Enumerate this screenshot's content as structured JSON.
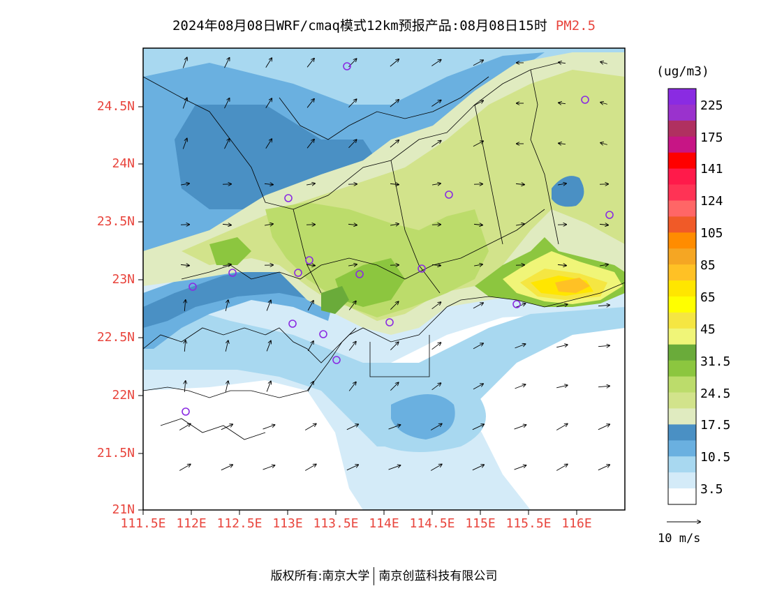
{
  "header": {
    "title": "2024年08月08日WRF/cmaq模式12km预报产品:08月08日15时",
    "pollutant": "PM2.5"
  },
  "axes": {
    "lat_labels": [
      "24.5N",
      "24N",
      "23.5N",
      "23N",
      "22.5N",
      "22N",
      "21.5N",
      "21N"
    ],
    "lon_labels": [
      "111.5E",
      "112E",
      "112.5E",
      "113E",
      "113.5E",
      "114E",
      "114.5E",
      "115E",
      "115.5E",
      "116E"
    ],
    "label_color": "#e8443c"
  },
  "colorbar": {
    "units": "(ug/m3)",
    "labels": [
      "225",
      "175",
      "141",
      "124",
      "105",
      "85",
      "65",
      "45",
      "31.5",
      "24.5",
      "17.5",
      "10.5",
      "3.5"
    ],
    "colors_top_to_bottom": [
      "#8a2be2",
      "#9a32cd",
      "#b03060",
      "#c71585",
      "#ff0000",
      "#ff1a4a",
      "#ff3355",
      "#ff6666",
      "#f05a28",
      "#ff8c00",
      "#f5a623",
      "#ffc125",
      "#ffe600",
      "#ffff00",
      "#f5e642",
      "#f0f578",
      "#6aab3a",
      "#8cc63f",
      "#bcdc6b",
      "#d2e38b",
      "#e0ebc0",
      "#4a90c4",
      "#6ab0e0",
      "#a8d8f0",
      "#d4ebf8",
      "#ffffff"
    ]
  },
  "wind_reference": {
    "label": "10 m/s"
  },
  "footer": {
    "owner": "版权所有:南京大学",
    "partner": "南京创蓝科技有限公司"
  }
}
